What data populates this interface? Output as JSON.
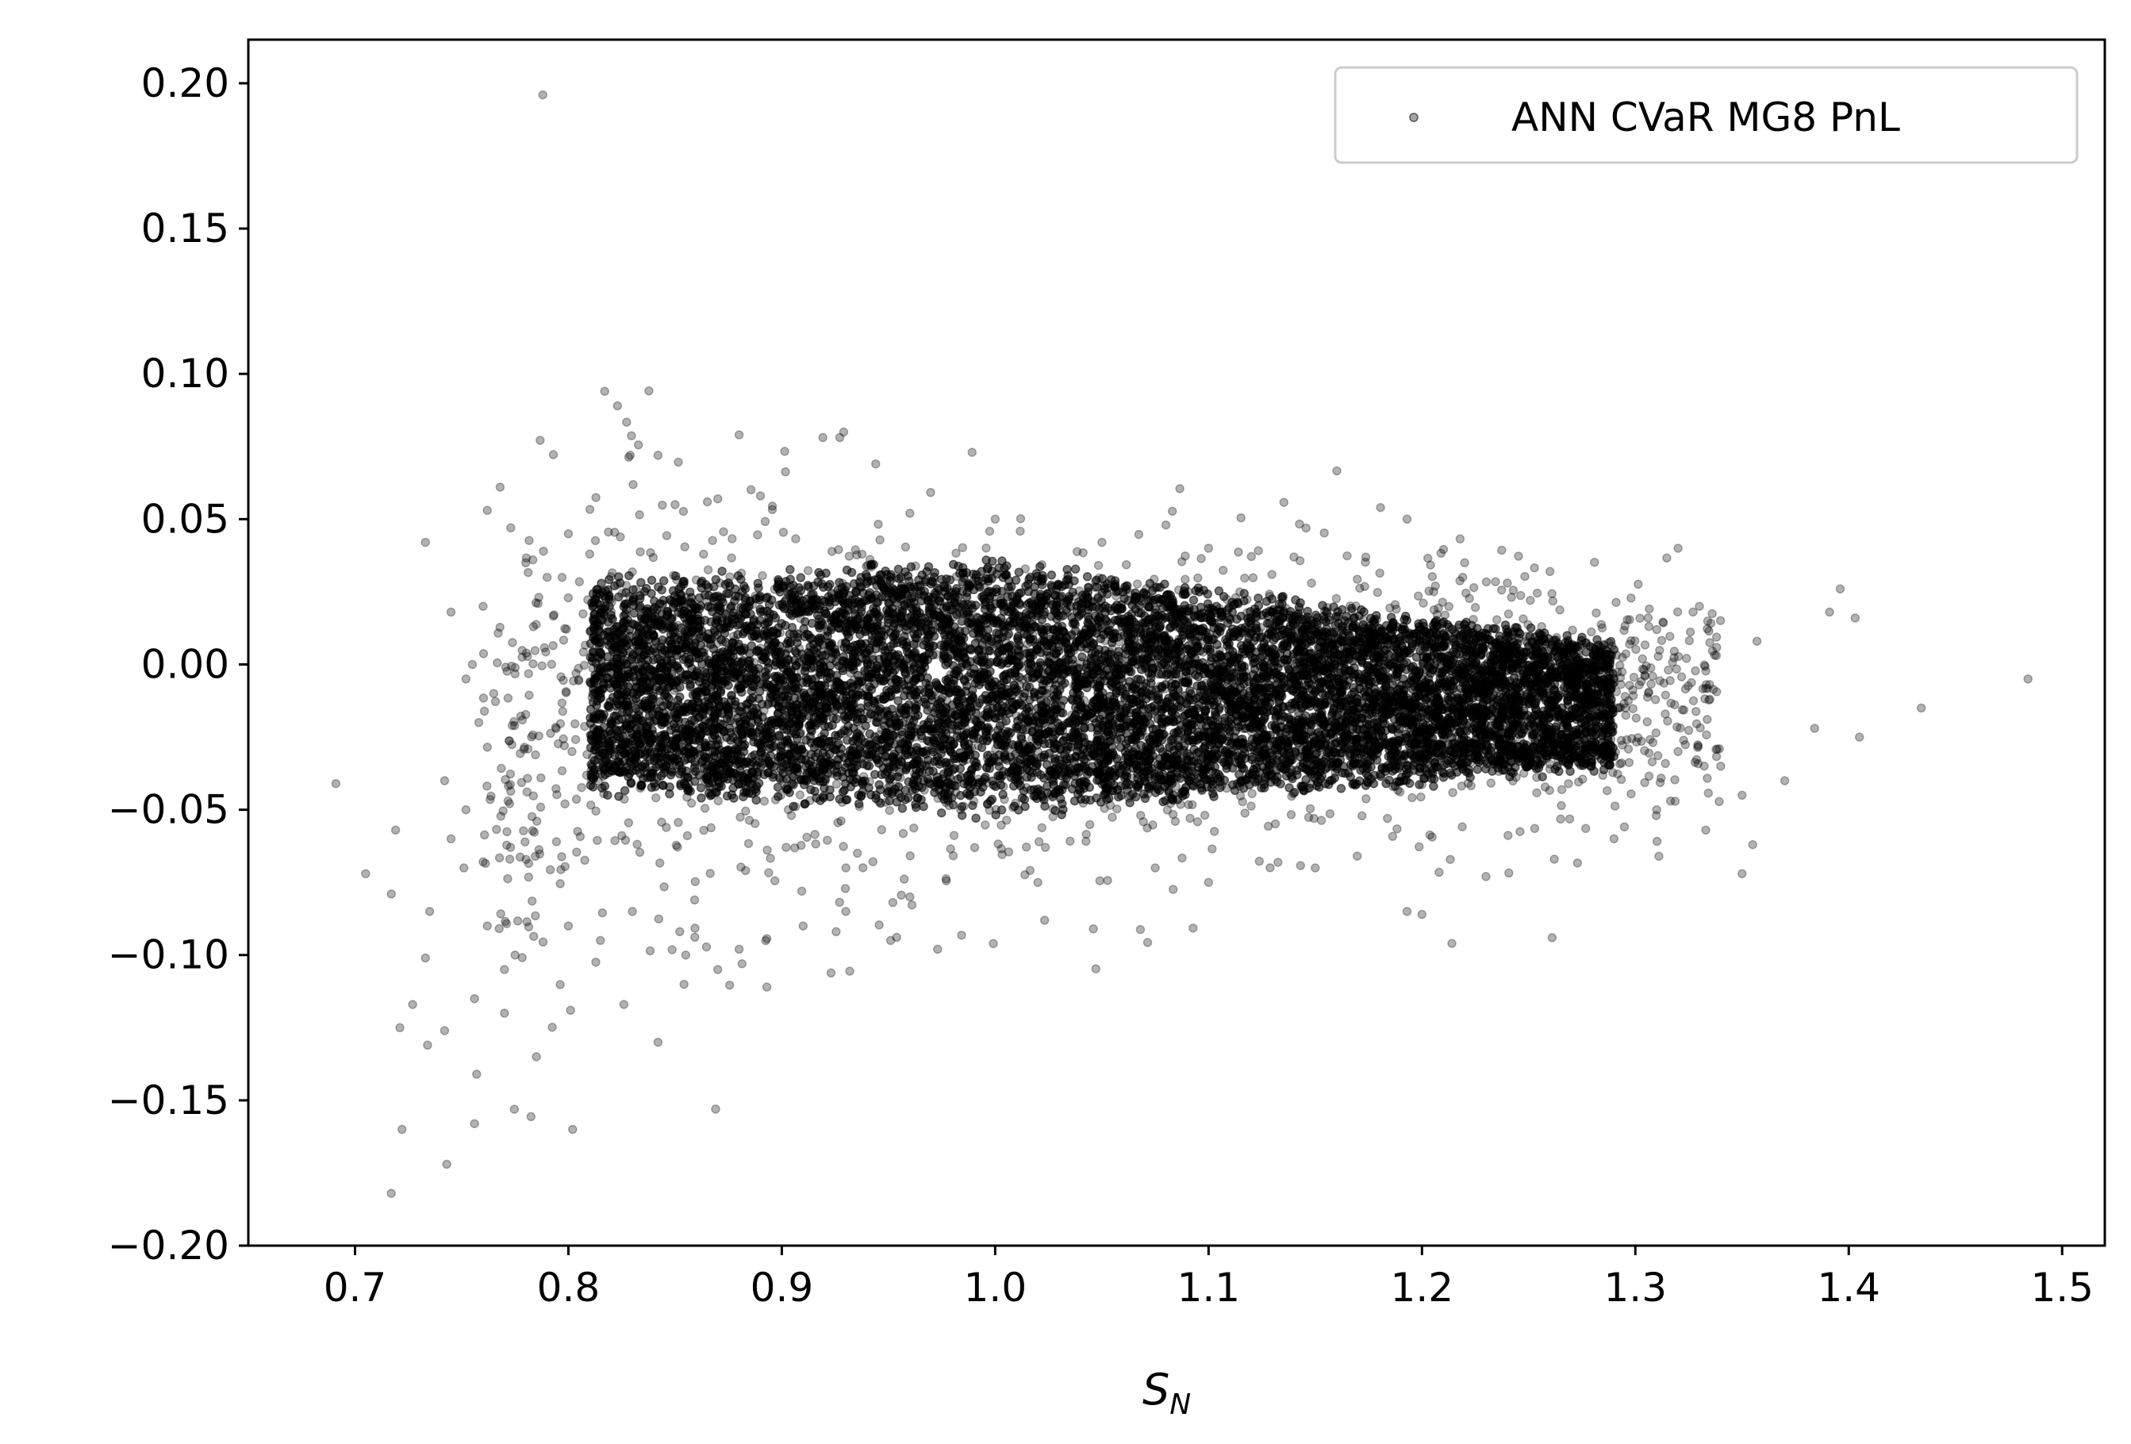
{
  "chart_data": {
    "type": "scatter",
    "xlabel": "S_N",
    "xlabel_main": "S",
    "xlabel_sub": "N",
    "ylabel": "",
    "xlim": [
      0.65,
      1.52
    ],
    "ylim": [
      -0.2,
      0.215
    ],
    "x_ticks": [
      "0.7",
      "0.8",
      "0.9",
      "1.0",
      "1.1",
      "1.2",
      "1.3",
      "1.4",
      "1.5"
    ],
    "y_ticks": [
      "−0.20",
      "−0.15",
      "−0.10",
      "−0.05",
      "0.00",
      "0.05",
      "0.10",
      "0.15",
      "0.20"
    ],
    "legend": {
      "label": "ANN CVaR MG8 PnL",
      "position": "upper right"
    },
    "marker_color": "#000000",
    "marker_alpha": 0.3,
    "series": [
      {
        "name": "ANN CVaR MG8 PnL",
        "dense_core": {
          "description": "dense cloud of points",
          "x_range": [
            0.82,
            1.28
          ],
          "y_center_left": -0.01,
          "y_center_right": -0.015,
          "y_spread_left": 0.045,
          "y_spread_peak_at_1": 0.05,
          "y_spread_right": 0.03
        },
        "outliers": [
          [
            0.788,
            0.196
          ],
          [
            0.823,
            0.089
          ],
          [
            0.929,
            0.08
          ],
          [
            0.944,
            0.069
          ],
          [
            0.829,
            0.072
          ],
          [
            0.842,
            0.072
          ],
          [
            0.768,
            0.061
          ],
          [
            0.773,
            0.047
          ],
          [
            0.762,
            0.053
          ],
          [
            0.733,
            0.042
          ],
          [
            0.745,
            0.018
          ],
          [
            1.193,
            0.05
          ],
          [
            1.32,
            0.04
          ],
          [
            1.396,
            0.026
          ],
          [
            1.391,
            0.018
          ],
          [
            1.403,
            0.016
          ],
          [
            1.357,
            0.008
          ],
          [
            1.484,
            -0.005
          ],
          [
            1.434,
            -0.015
          ],
          [
            1.405,
            -0.025
          ],
          [
            1.384,
            -0.022
          ],
          [
            1.37,
            -0.04
          ],
          [
            1.35,
            -0.045
          ],
          [
            1.333,
            -0.057
          ],
          [
            1.355,
            -0.062
          ],
          [
            1.311,
            -0.066
          ],
          [
            1.35,
            -0.072
          ],
          [
            1.262,
            -0.067
          ],
          [
            1.261,
            -0.094
          ],
          [
            1.214,
            -0.096
          ],
          [
            1.2,
            -0.086
          ],
          [
            1.193,
            -0.085
          ],
          [
            1.046,
            -0.091
          ],
          [
            0.973,
            -0.098
          ],
          [
            0.951,
            -0.095
          ],
          [
            0.893,
            -0.111
          ],
          [
            0.869,
            -0.153
          ],
          [
            0.842,
            -0.13
          ],
          [
            0.826,
            -0.117
          ],
          [
            0.802,
            -0.16
          ],
          [
            0.801,
            -0.119
          ],
          [
            0.785,
            -0.135
          ],
          [
            0.757,
            -0.141
          ],
          [
            0.756,
            -0.158
          ],
          [
            0.743,
            -0.172
          ],
          [
            0.722,
            -0.16
          ],
          [
            0.717,
            -0.182
          ],
          [
            0.734,
            -0.131
          ],
          [
            0.733,
            -0.101
          ],
          [
            0.727,
            -0.117
          ],
          [
            0.721,
            -0.125
          ],
          [
            0.742,
            -0.126
          ],
          [
            0.705,
            -0.072
          ],
          [
            0.717,
            -0.079
          ],
          [
            0.719,
            -0.057
          ],
          [
            0.691,
            -0.041
          ],
          [
            0.745,
            -0.06
          ],
          [
            0.752,
            -0.05
          ],
          [
            0.756,
            -0.115
          ],
          [
            0.77,
            -0.12
          ],
          [
            0.77,
            -0.105
          ],
          [
            0.735,
            -0.085
          ],
          [
            0.742,
            -0.04
          ],
          [
            0.751,
            -0.07
          ],
          [
            0.762,
            -0.09
          ],
          [
            0.775,
            -0.1
          ],
          [
            0.8,
            -0.09
          ],
          [
            0.815,
            -0.095
          ],
          [
            0.83,
            -0.085
          ],
          [
            0.855,
            -0.1
          ],
          [
            0.87,
            -0.105
          ],
          [
            0.88,
            -0.098
          ],
          [
            0.91,
            -0.09
          ],
          [
            0.93,
            -0.085
          ],
          [
            0.96,
            -0.08
          ],
          [
            1.02,
            -0.075
          ],
          [
            1.075,
            -0.07
          ],
          [
            1.1,
            -0.075
          ],
          [
            1.15,
            -0.07
          ],
          [
            1.23,
            -0.073
          ],
          [
            1.29,
            -0.06
          ],
          [
            1.31,
            -0.05
          ],
          [
            1.32,
            -0.03
          ],
          [
            1.34,
            -0.035
          ],
          [
            1.33,
            0.02
          ],
          [
            1.31,
            0.012
          ],
          [
            1.275,
            0.007
          ],
          [
            1.26,
            0.032
          ],
          [
            1.24,
            0.028
          ],
          [
            1.22,
            0.035
          ],
          [
            1.1,
            0.04
          ],
          [
            1.08,
            0.048
          ],
          [
            1.14,
            0.037
          ],
          [
            0.8,
            0.045
          ],
          [
            0.81,
            0.038
          ],
          [
            0.79,
            0.03
          ],
          [
            0.78,
            0.035
          ],
          [
            0.76,
            0.02
          ],
          [
            0.755,
            0.0
          ],
          [
            0.752,
            -0.005
          ],
          [
            0.758,
            -0.02
          ],
          [
            0.765,
            -0.01
          ],
          [
            0.85,
            0.055
          ],
          [
            0.87,
            0.057
          ],
          [
            0.89,
            0.058
          ],
          [
            0.96,
            0.052
          ],
          [
            1.0,
            0.05
          ],
          [
            1.05,
            0.042
          ]
        ]
      }
    ]
  }
}
